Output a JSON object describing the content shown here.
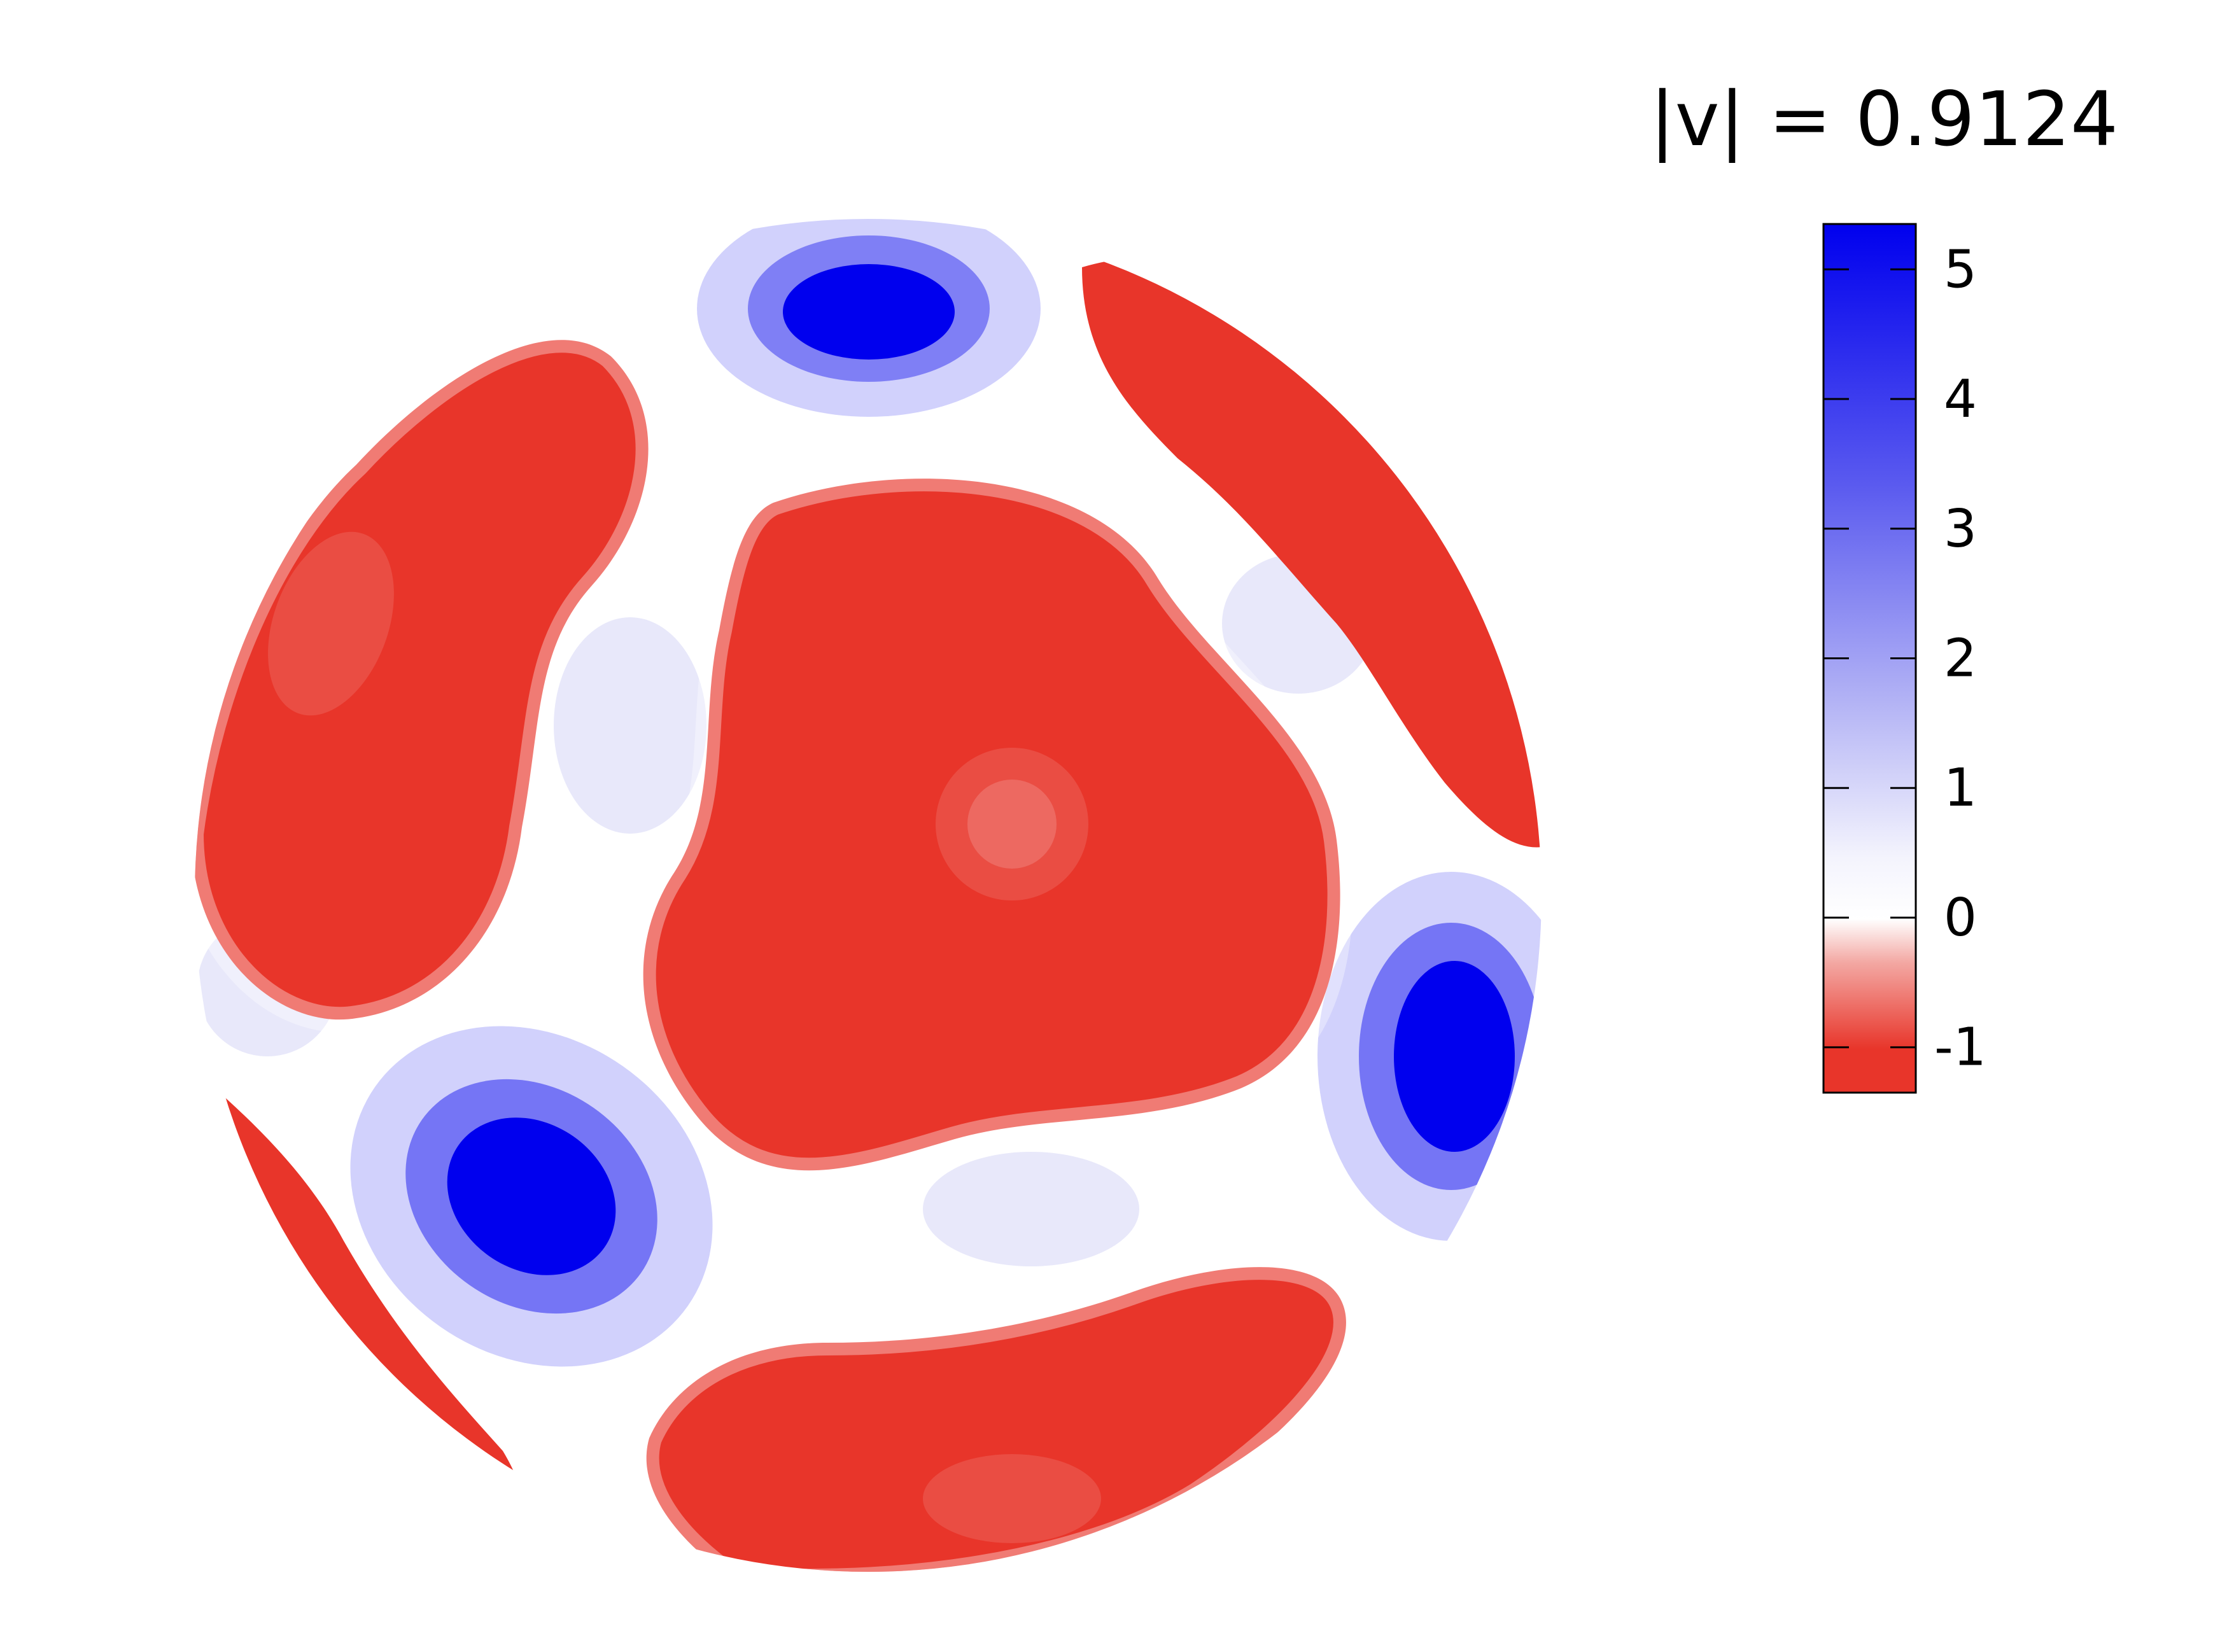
{
  "chart_data": {
    "type": "heatmap",
    "title": "|v| = 0.9124",
    "colorbar": {
      "min": -1.35,
      "max": 5.35,
      "ticks": [
        5,
        4,
        3,
        2,
        1,
        0,
        -1
      ],
      "colors": {
        "negative": "#e8352a",
        "zero": "#ffffff",
        "positive": "#0000ee"
      }
    },
    "field_features": [
      {
        "kind": "min",
        "position": "center",
        "value": -1
      },
      {
        "kind": "min",
        "position": "upper-left",
        "value": -1
      },
      {
        "kind": "min",
        "position": "upper-right",
        "value": -1
      },
      {
        "kind": "min",
        "position": "bottom",
        "value": -1
      },
      {
        "kind": "min",
        "position": "lower-left",
        "value": -1
      },
      {
        "kind": "max",
        "position": "top",
        "value": 5.2
      },
      {
        "kind": "max",
        "position": "lower-left",
        "value": 5.2
      },
      {
        "kind": "max",
        "position": "right",
        "value": 5.2
      }
    ]
  }
}
